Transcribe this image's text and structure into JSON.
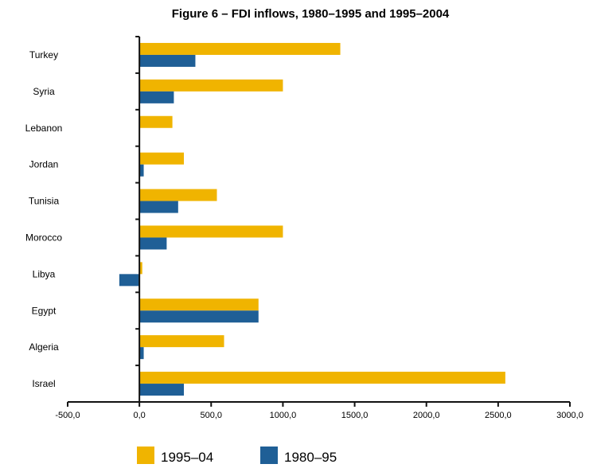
{
  "chart_data": {
    "type": "bar",
    "orientation": "horizontal",
    "title": "Figure 6 – FDI inflows, 1980–1995 and 1995–2004",
    "xlabel": "",
    "ylabel": "",
    "xlim": [
      -500,
      3000
    ],
    "x_ticks": [
      -500,
      0,
      500,
      1000,
      1500,
      2000,
      2500,
      3000
    ],
    "x_tick_labels": [
      "-500,0",
      "0,0",
      "500,0",
      "1000,0",
      "1500,0",
      "2000,0",
      "2500,0",
      "3000,0"
    ],
    "grid": false,
    "legend_position": "bottom",
    "categories": [
      "Turkey",
      "Syria",
      "Lebanon",
      "Jordan",
      "Tunisia",
      "Morocco",
      "Libya",
      "Egypt",
      "Algeria",
      "Israel"
    ],
    "series": [
      {
        "name": "1995–04",
        "color": "#f0b400",
        "values": [
          1400,
          1000,
          230,
          310,
          540,
          1000,
          20,
          830,
          590,
          2550
        ]
      },
      {
        "name": "1980–95",
        "color": "#1f5f96",
        "values": [
          390,
          240,
          null,
          30,
          270,
          190,
          -140,
          830,
          30,
          310
        ]
      }
    ]
  }
}
